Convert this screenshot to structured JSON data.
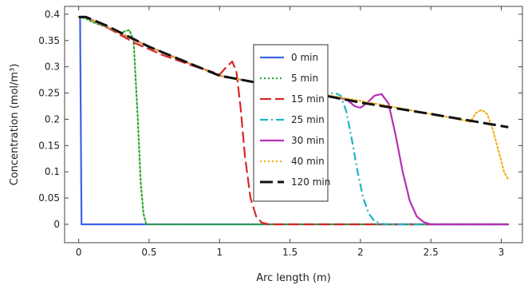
{
  "chart_data": {
    "type": "line",
    "title": "",
    "xlabel": "Arc length (m)",
    "ylabel": "Concentration (mol/m³)",
    "xlim": [
      -0.1,
      3.15
    ],
    "ylim": [
      -0.035,
      0.415
    ],
    "x_ticks": [
      0,
      0.5,
      1,
      1.5,
      2,
      2.5,
      3
    ],
    "x_tick_labels": [
      "0",
      "0.5",
      "1",
      "1.5",
      "2",
      "2.5",
      "3"
    ],
    "y_ticks": [
      0,
      0.05,
      0.1,
      0.15,
      0.2,
      0.25,
      0.3,
      0.35,
      0.4
    ],
    "y_tick_labels": [
      "0",
      "0.05",
      "0.1",
      "0.15",
      "0.2",
      "0.25",
      "0.3",
      "0.35",
      "0.4"
    ],
    "grid": false,
    "legend_position": "center",
    "series": [
      {
        "name": "0 min",
        "color": "#3b63ea",
        "style": "solid",
        "x": [
          0,
          0.01,
          0.02,
          0.03,
          3.05
        ],
        "y": [
          0.395,
          0.395,
          0.0,
          0.0,
          0.0
        ]
      },
      {
        "name": "5 min",
        "color": "#2ea82e",
        "style": "dotted",
        "x": [
          0,
          0.05,
          0.1,
          0.2,
          0.3,
          0.36,
          0.39,
          0.42,
          0.44,
          0.46,
          0.48,
          3.05
        ],
        "y": [
          0.395,
          0.392,
          0.385,
          0.375,
          0.365,
          0.37,
          0.35,
          0.2,
          0.08,
          0.02,
          0.0,
          0.0
        ]
      },
      {
        "name": "15 min",
        "color": "#d62828",
        "style": "dashed",
        "x": [
          0,
          0.05,
          0.2,
          0.4,
          0.6,
          0.8,
          0.95,
          1.0,
          1.05,
          1.09,
          1.12,
          1.15,
          1.18,
          1.22,
          1.26,
          1.3,
          1.35,
          3.05
        ],
        "y": [
          0.395,
          0.395,
          0.375,
          0.345,
          0.322,
          0.303,
          0.29,
          0.285,
          0.3,
          0.31,
          0.29,
          0.22,
          0.13,
          0.05,
          0.015,
          0.003,
          0.0,
          0.0
        ]
      },
      {
        "name": "25 min",
        "color": "#1fb3c2",
        "style": "dashdot",
        "x": [
          0,
          0.05,
          0.5,
          1.0,
          1.5,
          1.75,
          1.82,
          1.86,
          1.9,
          1.94,
          1.98,
          2.02,
          2.06,
          2.1,
          2.15,
          2.2,
          3.05
        ],
        "y": [
          0.395,
          0.395,
          0.338,
          0.283,
          0.258,
          0.248,
          0.25,
          0.245,
          0.215,
          0.16,
          0.1,
          0.05,
          0.02,
          0.006,
          0.001,
          0.0,
          0.0
        ]
      },
      {
        "name": "30 min",
        "color": "#b52fb5",
        "style": "solid",
        "x": [
          0,
          0.05,
          0.5,
          1.0,
          1.5,
          1.9,
          1.96,
          2.0,
          2.05,
          2.1,
          2.15,
          2.2,
          2.25,
          2.3,
          2.35,
          2.4,
          2.45,
          2.5,
          3.05
        ],
        "y": [
          0.395,
          0.395,
          0.338,
          0.283,
          0.258,
          0.238,
          0.225,
          0.222,
          0.232,
          0.245,
          0.248,
          0.23,
          0.17,
          0.1,
          0.045,
          0.015,
          0.004,
          0.0,
          0.0
        ]
      },
      {
        "name": "40 min",
        "color": "#f2b11b",
        "style": "dotted",
        "x": [
          0,
          0.05,
          0.5,
          1.0,
          1.5,
          2.0,
          2.5,
          2.7,
          2.78,
          2.82,
          2.86,
          2.9,
          2.94,
          2.98,
          3.02,
          3.05
        ],
        "y": [
          0.395,
          0.395,
          0.338,
          0.283,
          0.258,
          0.235,
          0.21,
          0.2,
          0.195,
          0.212,
          0.218,
          0.21,
          0.18,
          0.14,
          0.1,
          0.085
        ]
      },
      {
        "name": "120 min",
        "color": "#111111",
        "style": "longdash",
        "x": [
          0,
          0.05,
          0.2,
          0.5,
          1.0,
          1.5,
          2.0,
          2.5,
          3.05
        ],
        "y": [
          0.395,
          0.395,
          0.378,
          0.338,
          0.283,
          0.258,
          0.232,
          0.21,
          0.185
        ]
      }
    ]
  }
}
